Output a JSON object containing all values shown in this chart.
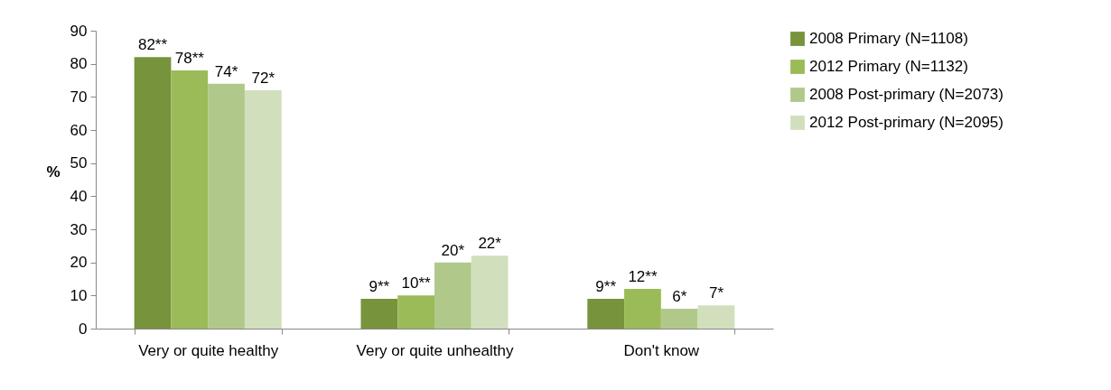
{
  "chart_data": {
    "type": "bar",
    "ylabel": "%",
    "categories": [
      "Very or quite healthy",
      "Very or quite unhealthy",
      "Don't know"
    ],
    "series": [
      {
        "name": "2008 Primary (N=1108)",
        "color": "#77933c",
        "values": [
          82,
          9,
          9
        ],
        "value_labels": [
          "82**",
          "9**",
          "9**"
        ]
      },
      {
        "name": "2012 Primary (N=1132)",
        "color": "#9bbb59",
        "values": [
          78,
          10,
          12
        ],
        "value_labels": [
          "78**",
          "10**",
          "12**"
        ]
      },
      {
        "name": "2008 Post-primary (N=2073)",
        "color": "#b0c98a",
        "values": [
          74,
          20,
          6
        ],
        "value_labels": [
          "74*",
          "20*",
          "6*"
        ]
      },
      {
        "name": "2012 Post-primary (N=2095)",
        "color": "#d2dfbd",
        "values": [
          72,
          22,
          7
        ],
        "value_labels": [
          "72*",
          "22*",
          "7*"
        ]
      }
    ],
    "ylim": [
      0,
      90
    ],
    "yticks": [
      0,
      10,
      20,
      30,
      40,
      50,
      60,
      70,
      80,
      90
    ],
    "grid": false,
    "legend": "right"
  }
}
